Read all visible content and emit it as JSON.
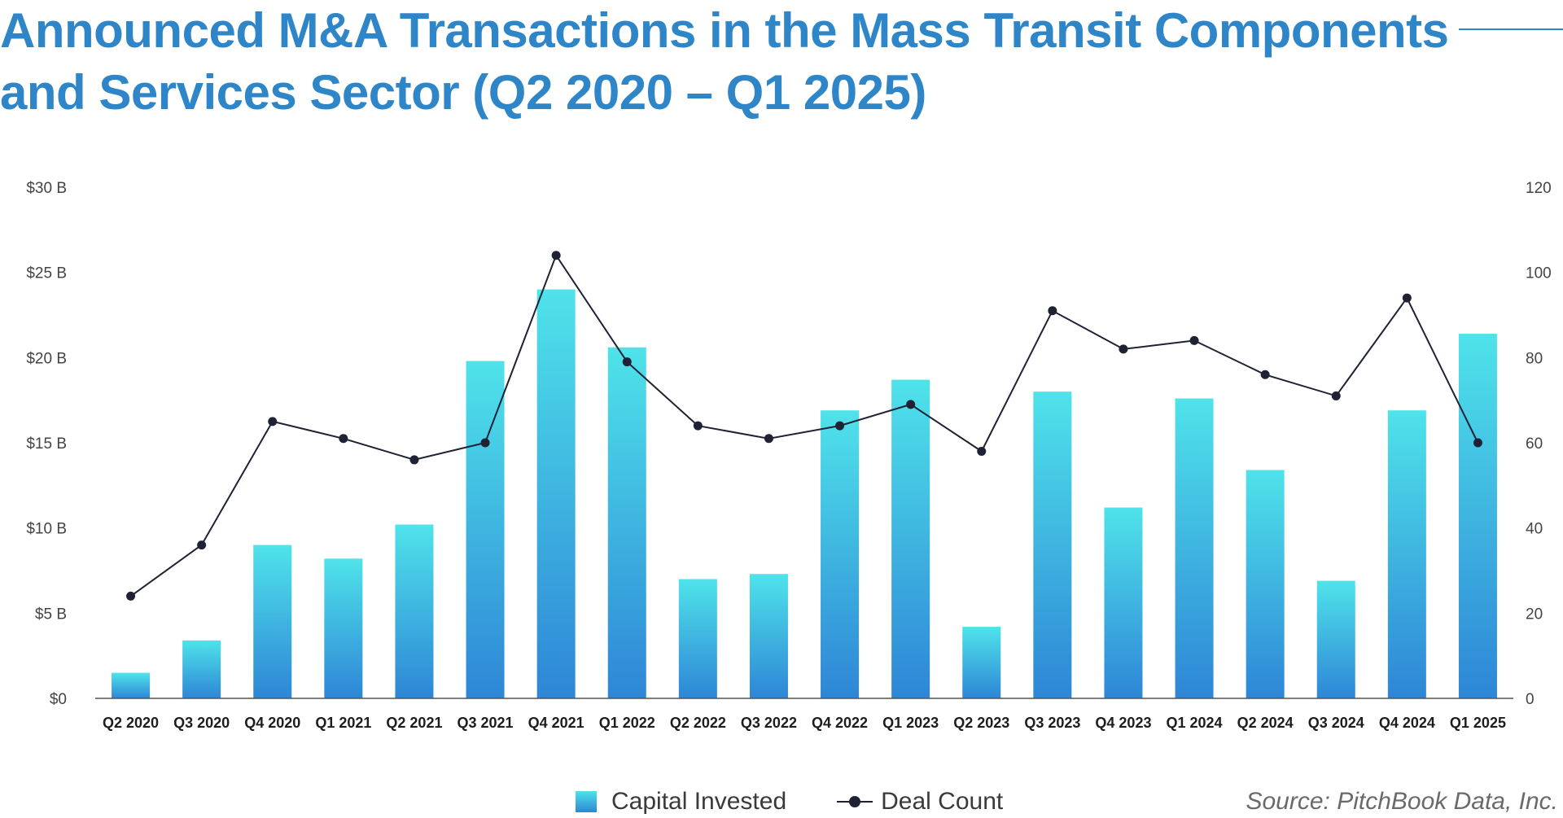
{
  "title_line1": "Announced M&A Transactions in the Mass Transit Components",
  "title_line2": "and Services Sector (Q2 2020 – Q1 2025)",
  "source": "Source: PitchBook Data, Inc.",
  "colors": {
    "title": "#2e86c9",
    "bar_top": "#4fe3ea",
    "bar_bottom": "#2e86d6",
    "line": "#1f2235"
  },
  "chart_data": {
    "type": "bar",
    "categories": [
      "Q2 2020",
      "Q3 2020",
      "Q4 2020",
      "Q1 2021",
      "Q2 2021",
      "Q3 2021",
      "Q4 2021",
      "Q1 2022",
      "Q2 2022",
      "Q3 2022",
      "Q4 2022",
      "Q1 2023",
      "Q2 2023",
      "Q3 2023",
      "Q4 2023",
      "Q1 2024",
      "Q2 2024",
      "Q3 2024",
      "Q4 2024",
      "Q1 2025"
    ],
    "series": [
      {
        "name": "Capital Invested",
        "type": "bar",
        "axis": "left",
        "unit": "$B",
        "values": [
          1.5,
          3.4,
          9.0,
          8.2,
          10.2,
          19.8,
          24.0,
          20.6,
          7.0,
          7.3,
          16.9,
          18.7,
          4.2,
          18.0,
          11.2,
          17.6,
          13.4,
          6.9,
          16.9,
          21.4
        ]
      },
      {
        "name": "Deal Count",
        "type": "line",
        "axis": "right",
        "values": [
          24,
          36,
          65,
          61,
          56,
          60,
          104,
          79,
          64,
          61,
          64,
          69,
          58,
          91,
          82,
          84,
          76,
          71,
          94,
          60
        ]
      }
    ],
    "y_left": {
      "ylim": [
        0,
        30
      ],
      "ticks": [
        0,
        5,
        10,
        15,
        20,
        25,
        30
      ],
      "tick_labels": [
        "$0",
        "$5 B",
        "$10 B",
        "$15 B",
        "$20 B",
        "$25 B",
        "$30 B"
      ]
    },
    "y_right": {
      "ylim": [
        0,
        120
      ],
      "ticks": [
        0,
        20,
        40,
        60,
        80,
        100,
        120
      ],
      "tick_labels": [
        "0",
        "20",
        "40",
        "60",
        "80",
        "100",
        "120"
      ]
    },
    "grid": false,
    "legend": {
      "position": "bottom-center",
      "items": [
        "Capital Invested",
        "Deal Count"
      ]
    }
  }
}
